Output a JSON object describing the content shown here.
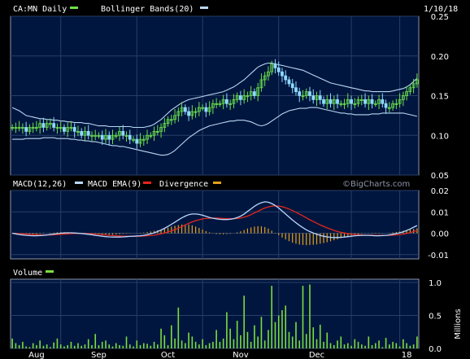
{
  "colors": {
    "background": "#000000",
    "panel": "#00163F",
    "grid": "#2A3D66",
    "border": "#8C96AA",
    "price_up": "#6CE04A",
    "price_down": "#8FD8FF",
    "bollinger": "#B8D8F0",
    "macd": "#B9D8FF",
    "macd_ema": "#E5261C",
    "divergence": "#E5A11A",
    "volume": "#7DDC3C"
  },
  "chart_data": [
    {
      "type": "candlestick",
      "title": "CA:MN Daily",
      "indicator_label": "Bollinger Bands(20)",
      "date_label": "1/10/18",
      "legend": [
        {
          "label": "CA:MN Daily",
          "color": "#6CE04A"
        },
        {
          "label": "Bollinger Bands(20)",
          "color": "#B8D8F0"
        }
      ],
      "yticks": [
        "0.25",
        "0.20",
        "0.15",
        "0.10",
        "0.05"
      ],
      "ylim": [
        0.05,
        0.25
      ],
      "x_labels": [
        "Aug",
        "Sep",
        "Oct",
        "Nov",
        "Dec",
        "18"
      ],
      "bars_count": 118,
      "close": [
        0.11,
        0.11,
        0.11,
        0.11,
        0.105,
        0.11,
        0.11,
        0.11,
        0.115,
        0.11,
        0.115,
        0.115,
        0.11,
        0.11,
        0.11,
        0.105,
        0.11,
        0.11,
        0.105,
        0.105,
        0.1,
        0.105,
        0.1,
        0.1,
        0.1,
        0.1,
        0.095,
        0.1,
        0.095,
        0.1,
        0.1,
        0.105,
        0.1,
        0.1,
        0.095,
        0.095,
        0.09,
        0.095,
        0.095,
        0.1,
        0.1,
        0.105,
        0.105,
        0.11,
        0.115,
        0.12,
        0.12,
        0.125,
        0.13,
        0.135,
        0.13,
        0.125,
        0.13,
        0.13,
        0.135,
        0.135,
        0.13,
        0.135,
        0.14,
        0.14,
        0.14,
        0.145,
        0.14,
        0.14,
        0.145,
        0.15,
        0.145,
        0.15,
        0.15,
        0.155,
        0.15,
        0.16,
        0.17,
        0.175,
        0.18,
        0.19,
        0.185,
        0.18,
        0.175,
        0.17,
        0.165,
        0.16,
        0.155,
        0.15,
        0.15,
        0.155,
        0.15,
        0.145,
        0.15,
        0.145,
        0.14,
        0.145,
        0.14,
        0.145,
        0.14,
        0.14,
        0.14,
        0.145,
        0.14,
        0.14,
        0.145,
        0.145,
        0.14,
        0.145,
        0.14,
        0.14,
        0.145,
        0.14,
        0.135,
        0.135,
        0.14,
        0.14,
        0.145,
        0.15,
        0.155,
        0.16,
        0.165,
        0.17
      ],
      "bb_upper": [
        0.135,
        0.133,
        0.131,
        0.128,
        0.125,
        0.124,
        0.123,
        0.122,
        0.121,
        0.121,
        0.12,
        0.12,
        0.119,
        0.119,
        0.118,
        0.118,
        0.117,
        0.117,
        0.116,
        0.116,
        0.116,
        0.115,
        0.115,
        0.114,
        0.113,
        0.112,
        0.112,
        0.112,
        0.111,
        0.111,
        0.111,
        0.111,
        0.111,
        0.111,
        0.111,
        0.11,
        0.11,
        0.11,
        0.11,
        0.111,
        0.112,
        0.114,
        0.117,
        0.12,
        0.124,
        0.128,
        0.132,
        0.135,
        0.138,
        0.141,
        0.143,
        0.145,
        0.146,
        0.147,
        0.148,
        0.149,
        0.15,
        0.151,
        0.152,
        0.153,
        0.154,
        0.155,
        0.157,
        0.159,
        0.161,
        0.164,
        0.167,
        0.17,
        0.174,
        0.178,
        0.182,
        0.186,
        0.188,
        0.19,
        0.191,
        0.191,
        0.19,
        0.189,
        0.188,
        0.187,
        0.186,
        0.185,
        0.184,
        0.183,
        0.182,
        0.18,
        0.178,
        0.176,
        0.174,
        0.172,
        0.17,
        0.168,
        0.166,
        0.165,
        0.164,
        0.163,
        0.162,
        0.161,
        0.16,
        0.159,
        0.158,
        0.157,
        0.156,
        0.156,
        0.155,
        0.155,
        0.155,
        0.155,
        0.155,
        0.155,
        0.156,
        0.157,
        0.158,
        0.159,
        0.161,
        0.164,
        0.168,
        0.172
      ],
      "bb_lower": [
        0.095,
        0.095,
        0.095,
        0.095,
        0.096,
        0.096,
        0.096,
        0.096,
        0.096,
        0.097,
        0.097,
        0.097,
        0.097,
        0.096,
        0.096,
        0.096,
        0.096,
        0.095,
        0.095,
        0.094,
        0.094,
        0.093,
        0.093,
        0.092,
        0.092,
        0.091,
        0.09,
        0.089,
        0.088,
        0.087,
        0.087,
        0.086,
        0.086,
        0.085,
        0.084,
        0.083,
        0.082,
        0.081,
        0.08,
        0.079,
        0.078,
        0.077,
        0.076,
        0.075,
        0.075,
        0.076,
        0.078,
        0.081,
        0.085,
        0.089,
        0.093,
        0.097,
        0.1,
        0.103,
        0.106,
        0.108,
        0.11,
        0.112,
        0.113,
        0.114,
        0.115,
        0.116,
        0.117,
        0.118,
        0.118,
        0.119,
        0.119,
        0.119,
        0.118,
        0.117,
        0.115,
        0.113,
        0.112,
        0.113,
        0.115,
        0.118,
        0.121,
        0.124,
        0.127,
        0.129,
        0.131,
        0.132,
        0.133,
        0.134,
        0.134,
        0.134,
        0.135,
        0.135,
        0.135,
        0.134,
        0.133,
        0.132,
        0.131,
        0.13,
        0.129,
        0.128,
        0.128,
        0.127,
        0.127,
        0.126,
        0.126,
        0.126,
        0.126,
        0.126,
        0.127,
        0.127,
        0.127,
        0.128,
        0.128,
        0.128,
        0.128,
        0.128,
        0.128,
        0.128,
        0.127,
        0.126,
        0.125,
        0.124
      ],
      "grid": true
    },
    {
      "type": "line",
      "title": "MACD(12,26)",
      "legend": [
        {
          "label": "MACD(12,26)",
          "color": "#B9D8FF"
        },
        {
          "label": "MACD EMA(9)",
          "color": "#E5261C"
        },
        {
          "label": "Divergence",
          "color": "#E5A11A"
        }
      ],
      "yticks": [
        "0.02",
        "0.01",
        "0.00",
        "-0.01"
      ],
      "ylim": [
        -0.012,
        0.02
      ],
      "macd": [
        0.0,
        -0.0003,
        -0.0006,
        -0.0008,
        -0.001,
        -0.0011,
        -0.0012,
        -0.0012,
        -0.0011,
        -0.001,
        -0.0008,
        -0.0006,
        -0.0004,
        -0.0002,
        0.0,
        0.0001,
        0.0002,
        0.0002,
        0.0001,
        0.0,
        -0.0001,
        -0.0003,
        -0.0005,
        -0.0007,
        -0.001,
        -0.0012,
        -0.0014,
        -0.0016,
        -0.0017,
        -0.0018,
        -0.0018,
        -0.0018,
        -0.0017,
        -0.0016,
        -0.0015,
        -0.0014,
        -0.0013,
        -0.0012,
        -0.001,
        -0.0007,
        -0.0003,
        0.0002,
        0.0008,
        0.0015,
        0.0023,
        0.0032,
        0.0042,
        0.0052,
        0.0062,
        0.0072,
        0.008,
        0.0087,
        0.009,
        0.009,
        0.0088,
        0.0084,
        0.0079,
        0.0074,
        0.007,
        0.0067,
        0.0065,
        0.0064,
        0.0064,
        0.0065,
        0.0068,
        0.0073,
        0.008,
        0.009,
        0.0102,
        0.0114,
        0.0126,
        0.0136,
        0.0143,
        0.0147,
        0.0145,
        0.0139,
        0.013,
        0.0118,
        0.0104,
        0.009,
        0.0076,
        0.0062,
        0.0049,
        0.0037,
        0.0026,
        0.0016,
        0.0008,
        0.0001,
        -0.0005,
        -0.001,
        -0.0014,
        -0.0017,
        -0.0019,
        -0.002,
        -0.002,
        -0.0019,
        -0.0018,
        -0.0016,
        -0.0014,
        -0.0012,
        -0.0011,
        -0.001,
        -0.001,
        -0.001,
        -0.0011,
        -0.0012,
        -0.0012,
        -0.0011,
        -0.001,
        -0.0008,
        -0.0005,
        -0.0002,
        0.0002,
        0.0007,
        0.0013,
        0.002,
        0.0028,
        0.0036
      ],
      "macd_ema": [
        0.0,
        -0.0001,
        -0.0002,
        -0.0003,
        -0.0004,
        -0.0005,
        -0.0006,
        -0.0007,
        -0.0008,
        -0.0008,
        -0.0008,
        -0.0008,
        -0.0007,
        -0.0006,
        -0.0005,
        -0.0004,
        -0.0003,
        -0.0002,
        -0.0001,
        -0.0001,
        -0.0001,
        -0.0001,
        -0.0002,
        -0.0003,
        -0.0004,
        -0.0005,
        -0.0007,
        -0.0008,
        -0.001,
        -0.0011,
        -0.0012,
        -0.0013,
        -0.0014,
        -0.0014,
        -0.0014,
        -0.0014,
        -0.0014,
        -0.0014,
        -0.0013,
        -0.0012,
        -0.0011,
        -0.0009,
        -0.0006,
        -0.0003,
        0.0001,
        0.0006,
        0.0011,
        0.0017,
        0.0024,
        0.0031,
        0.0039,
        0.0046,
        0.0053,
        0.0059,
        0.0063,
        0.0067,
        0.0069,
        0.007,
        0.0071,
        0.0071,
        0.007,
        0.0069,
        0.0068,
        0.0068,
        0.0068,
        0.0069,
        0.0071,
        0.0075,
        0.008,
        0.0087,
        0.0095,
        0.0103,
        0.0111,
        0.0118,
        0.0123,
        0.0127,
        0.0128,
        0.0127,
        0.0124,
        0.0119,
        0.0113,
        0.0106,
        0.0098,
        0.009,
        0.0081,
        0.0072,
        0.0063,
        0.0055,
        0.0047,
        0.0039,
        0.0032,
        0.0025,
        0.0019,
        0.0013,
        0.0008,
        0.0004,
        0.0001,
        -0.0002,
        -0.0004,
        -0.0006,
        -0.0007,
        -0.0008,
        -0.0009,
        -0.0009,
        -0.0009,
        -0.001,
        -0.001,
        -0.001,
        -0.001,
        -0.001,
        -0.0009,
        -0.0008,
        -0.0006,
        -0.0004,
        -0.0001,
        0.0003,
        0.0008,
        0.0013
      ]
    },
    {
      "type": "bar",
      "title": "Volume",
      "legend": [
        {
          "label": "Volume",
          "color": "#7DDC3C"
        }
      ],
      "yticks": [
        "1.0",
        "0.5",
        "0.0"
      ],
      "ylim": [
        0,
        1.05
      ],
      "ylabel": "Millions",
      "values": [
        0.15,
        0.08,
        0.05,
        0.1,
        0.03,
        0.02,
        0.08,
        0.05,
        0.12,
        0.04,
        0.06,
        0.02,
        0.09,
        0.15,
        0.06,
        0.03,
        0.05,
        0.1,
        0.04,
        0.08,
        0.04,
        0.06,
        0.14,
        0.05,
        0.22,
        0.05,
        0.1,
        0.12,
        0.06,
        0.03,
        0.08,
        0.05,
        0.04,
        0.18,
        0.06,
        0.03,
        0.12,
        0.05,
        0.08,
        0.07,
        0.04,
        0.1,
        0.06,
        0.3,
        0.2,
        0.05,
        0.35,
        0.15,
        0.62,
        0.12,
        0.08,
        0.24,
        0.18,
        0.1,
        0.06,
        0.14,
        0.05,
        0.08,
        0.1,
        0.28,
        0.1,
        0.15,
        0.55,
        0.3,
        0.14,
        0.42,
        0.2,
        0.8,
        0.25,
        0.1,
        0.35,
        0.18,
        0.48,
        0.12,
        0.28,
        0.95,
        0.4,
        0.5,
        0.58,
        0.65,
        0.25,
        0.18,
        0.4,
        0.12,
        0.95,
        0.22,
        0.97,
        0.32,
        0.14,
        0.36,
        0.1,
        0.24,
        0.08,
        0.05,
        0.12,
        0.18,
        0.06,
        0.08,
        0.04,
        0.14,
        0.1,
        0.06,
        0.04,
        0.18,
        0.05,
        0.08,
        0.12,
        0.02,
        0.16,
        0.06,
        0.1,
        0.08,
        0.03,
        0.14,
        0.08,
        0.04,
        0.06,
        0.18
      ]
    }
  ],
  "watermark": "©BigCharts.com"
}
